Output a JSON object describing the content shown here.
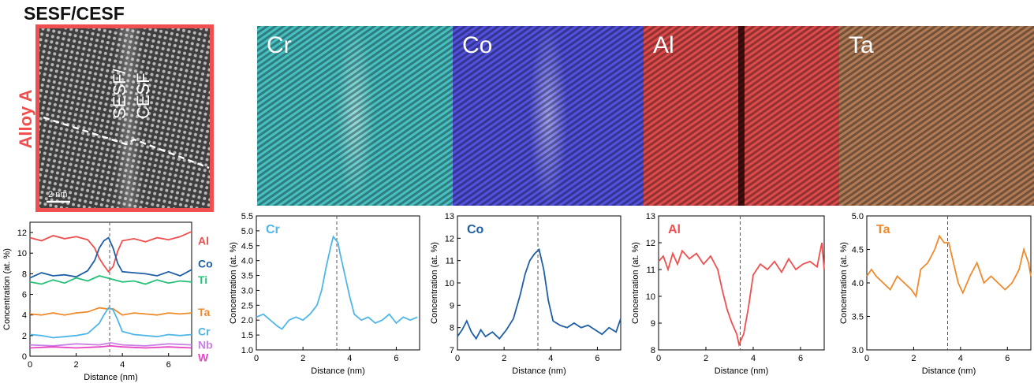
{
  "figure": {
    "title": "SESF/CESF",
    "alloy_label": "Alloy A",
    "haadf": {
      "annotation_line1": "SESF/",
      "annotation_line2": "CESF",
      "scale_bar": "2 nm"
    },
    "maps": [
      {
        "label": "Cr",
        "color": "#19d2d2",
        "dark": "#07393c"
      },
      {
        "label": "Co",
        "color": "#2a2aff",
        "dark": "#05054a"
      },
      {
        "label": "Al",
        "color": "#ff1e1e",
        "dark": "#4a0404"
      },
      {
        "label": "Ta",
        "color": "#c2621e",
        "dark": "#2e1505"
      }
    ]
  },
  "chart_data": [
    {
      "type": "line",
      "xlabel": "Distance (nm)",
      "ylabel": "Concentration (at. %)",
      "xlim": [
        0,
        7
      ],
      "ylim": [
        0,
        13
      ],
      "xticks": [
        0,
        2,
        4,
        6
      ],
      "yticks": [
        0,
        2,
        4,
        6,
        8,
        10,
        12
      ],
      "vline": 3.45,
      "series": [
        {
          "name": "Al",
          "color": "#ef4f4f",
          "x": [
            0,
            0.5,
            1,
            1.5,
            2,
            2.5,
            2.8,
            3,
            3.2,
            3.4,
            3.6,
            3.8,
            4,
            4.5,
            5,
            5.5,
            6,
            6.5,
            7
          ],
          "y": [
            11.5,
            11.2,
            11.7,
            11.4,
            11.6,
            11.3,
            10.5,
            9.5,
            8.8,
            8.2,
            8.7,
            10.2,
            11.2,
            11.4,
            11.1,
            11.5,
            11.3,
            11.6,
            12.1
          ]
        },
        {
          "name": "Co",
          "color": "#1f5fa6",
          "x": [
            0,
            0.5,
            1,
            1.5,
            2,
            2.5,
            2.8,
            3,
            3.2,
            3.4,
            3.6,
            3.8,
            4,
            4.5,
            5,
            5.5,
            6,
            6.5,
            7
          ],
          "y": [
            7.6,
            8.1,
            7.8,
            7.9,
            7.7,
            8.3,
            9.3,
            10.5,
            11.2,
            11.5,
            10.5,
            9.0,
            8.2,
            8.1,
            8.0,
            7.8,
            8.2,
            7.8,
            8.4
          ]
        },
        {
          "name": "Ti",
          "color": "#27c17a",
          "x": [
            0,
            0.5,
            1,
            1.5,
            2,
            2.5,
            3,
            3.5,
            4,
            4.5,
            5,
            5.5,
            6,
            6.5,
            7
          ],
          "y": [
            7.2,
            7.0,
            7.4,
            7.1,
            7.6,
            7.3,
            7.8,
            7.5,
            7.2,
            7.3,
            7.0,
            7.4,
            7.1,
            7.3,
            7.2
          ]
        },
        {
          "name": "Ta",
          "color": "#f08a2c",
          "x": [
            0,
            0.5,
            1,
            1.5,
            2,
            2.5,
            3,
            3.3,
            3.6,
            4,
            4.5,
            5,
            5.5,
            6,
            6.5,
            7
          ],
          "y": [
            4.1,
            4.0,
            4.2,
            4.0,
            4.2,
            4.3,
            4.7,
            4.6,
            4.6,
            4.0,
            4.2,
            4.1,
            4.0,
            4.2,
            4.1,
            4.2
          ]
        },
        {
          "name": "Cr",
          "color": "#4fb6e8",
          "x": [
            0,
            0.5,
            1,
            1.5,
            2,
            2.5,
            3,
            3.2,
            3.4,
            3.6,
            3.8,
            4,
            4.5,
            5,
            5.5,
            6,
            6.5,
            7
          ],
          "y": [
            2.1,
            2.0,
            1.8,
            1.9,
            2.0,
            2.2,
            3.2,
            4.0,
            4.7,
            4.5,
            3.5,
            2.4,
            2.1,
            2.0,
            1.9,
            2.1,
            2.0,
            2.1
          ]
        },
        {
          "name": "Nb",
          "color": "#c97fe3",
          "x": [
            0,
            1,
            2,
            3,
            3.5,
            4,
            5,
            6,
            7
          ],
          "y": [
            1.1,
            1.0,
            1.2,
            1.1,
            1.3,
            1.1,
            1.0,
            1.2,
            1.1
          ]
        },
        {
          "name": "W",
          "color": "#e844c4",
          "x": [
            0,
            1,
            2,
            3,
            3.5,
            4,
            5,
            6,
            7
          ],
          "y": [
            0.8,
            0.9,
            0.8,
            0.9,
            1.0,
            0.9,
            0.8,
            0.9,
            0.8
          ]
        }
      ]
    },
    {
      "type": "line",
      "title": "Cr",
      "xlabel": "Distance (nm)",
      "ylabel": "Concentration (at. %)",
      "xlim": [
        0,
        7
      ],
      "ylim": [
        1.0,
        5.5
      ],
      "xticks": [
        0,
        2,
        4,
        6
      ],
      "yticks": [
        1.0,
        1.5,
        2.0,
        2.5,
        3.0,
        3.5,
        4.0,
        4.5,
        5.0,
        5.5
      ],
      "vline": 3.45,
      "series": [
        {
          "color": "#4fb6e8",
          "x": [
            0,
            0.3,
            0.6,
            0.9,
            1.1,
            1.4,
            1.7,
            2.0,
            2.3,
            2.6,
            2.8,
            3.0,
            3.2,
            3.3,
            3.5,
            3.6,
            3.8,
            4.0,
            4.2,
            4.5,
            4.8,
            5.1,
            5.4,
            5.7,
            6.0,
            6.3,
            6.6,
            6.9
          ],
          "y": [
            2.1,
            2.2,
            2.0,
            1.8,
            1.7,
            2.0,
            2.1,
            2.0,
            2.2,
            2.5,
            3.0,
            3.8,
            4.5,
            4.8,
            4.6,
            4.2,
            3.5,
            2.8,
            2.2,
            2.0,
            2.1,
            1.9,
            2.0,
            2.2,
            1.9,
            2.1,
            2.0,
            2.1
          ]
        }
      ]
    },
    {
      "type": "line",
      "title": "Co",
      "xlabel": "Distance (nm)",
      "ylabel": "Concentration (at. %)",
      "xlim": [
        0,
        7
      ],
      "ylim": [
        7,
        13
      ],
      "xticks": [
        0,
        2,
        4,
        6
      ],
      "yticks": [
        7,
        8,
        9,
        10,
        11,
        12,
        13
      ],
      "vline": 3.45,
      "series": [
        {
          "color": "#1f5fa6",
          "x": [
            0,
            0.2,
            0.4,
            0.6,
            0.8,
            1.0,
            1.2,
            1.5,
            1.8,
            2.1,
            2.4,
            2.7,
            2.9,
            3.1,
            3.3,
            3.5,
            3.7,
            3.9,
            4.1,
            4.4,
            4.7,
            5.0,
            5.3,
            5.6,
            5.9,
            6.2,
            6.5,
            6.8,
            7.0
          ],
          "y": [
            7.6,
            7.9,
            8.3,
            7.8,
            7.5,
            7.9,
            7.6,
            7.8,
            7.5,
            7.9,
            8.4,
            9.5,
            10.4,
            11.0,
            11.3,
            11.5,
            10.6,
            9.2,
            8.3,
            8.1,
            8.0,
            8.2,
            8.0,
            8.1,
            7.9,
            7.7,
            8.0,
            7.8,
            8.4
          ]
        }
      ]
    },
    {
      "type": "line",
      "title": "Al",
      "xlabel": "Distance (nm)",
      "ylabel": "Concentration (at. %)",
      "xlim": [
        0,
        7
      ],
      "ylim": [
        8,
        13
      ],
      "xticks": [
        0,
        2,
        4,
        6
      ],
      "yticks": [
        8,
        9,
        10,
        11,
        12,
        13
      ],
      "vline": 3.45,
      "series": [
        {
          "color": "#ef4f4f",
          "x": [
            0,
            0.2,
            0.4,
            0.6,
            0.8,
            1.0,
            1.3,
            1.6,
            1.9,
            2.2,
            2.5,
            2.7,
            2.9,
            3.1,
            3.3,
            3.4,
            3.6,
            3.8,
            4.0,
            4.3,
            4.6,
            4.9,
            5.2,
            5.5,
            5.8,
            6.1,
            6.4,
            6.7,
            6.9,
            7.0
          ],
          "y": [
            11.3,
            11.5,
            11.0,
            11.6,
            11.2,
            11.7,
            11.4,
            11.6,
            11.2,
            11.5,
            11.0,
            10.2,
            9.5,
            9.0,
            8.6,
            8.2,
            8.6,
            9.6,
            10.8,
            11.2,
            11.0,
            11.3,
            10.9,
            11.4,
            11.0,
            11.2,
            11.3,
            11.1,
            12.0,
            11.0
          ]
        }
      ]
    },
    {
      "type": "line",
      "title": "Ta",
      "xlabel": "Distance (nm)",
      "ylabel": "Concentration (at. %)",
      "xlim": [
        0,
        7
      ],
      "ylim": [
        3.0,
        5.0
      ],
      "xticks": [
        0,
        2,
        4,
        6
      ],
      "yticks": [
        3.0,
        3.5,
        4.0,
        4.5,
        5.0
      ],
      "vline": 3.45,
      "series": [
        {
          "color": "#f08a2c",
          "x": [
            0,
            0.2,
            0.4,
            0.7,
            1.0,
            1.3,
            1.6,
            1.9,
            2.1,
            2.3,
            2.6,
            2.9,
            3.1,
            3.3,
            3.5,
            3.7,
            3.9,
            4.1,
            4.4,
            4.7,
            5.0,
            5.3,
            5.6,
            5.9,
            6.2,
            6.5,
            6.7,
            6.9,
            7.0
          ],
          "y": [
            4.1,
            4.2,
            4.1,
            4.0,
            3.9,
            4.1,
            4.0,
            3.9,
            3.8,
            4.2,
            4.3,
            4.5,
            4.7,
            4.6,
            4.6,
            4.3,
            4.0,
            3.85,
            4.1,
            4.3,
            4.0,
            4.1,
            4.0,
            3.9,
            4.0,
            4.2,
            4.5,
            4.3,
            4.1
          ]
        }
      ]
    }
  ]
}
